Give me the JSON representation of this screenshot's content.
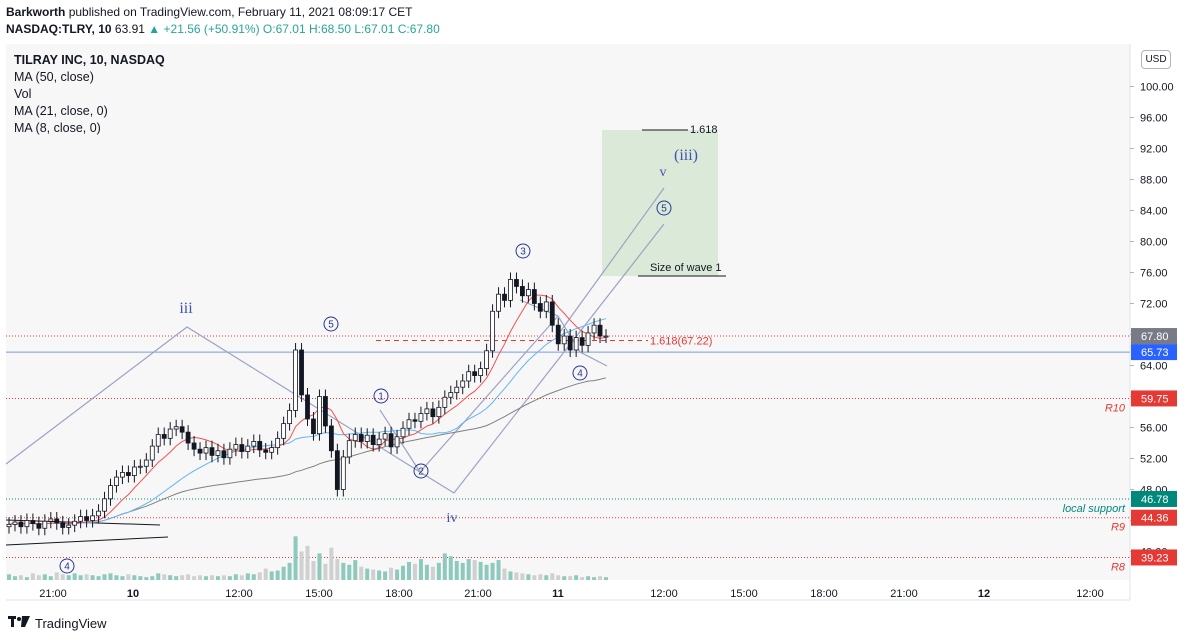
{
  "header": {
    "author": "Barkworth",
    "published": "published on TradingView.com, February 11, 2021 08:09:17 CET",
    "symbol": "NASDAQ:TLRY, 10",
    "last": "63.91",
    "change": "▲ +21.56 (+50.91%)",
    "o": "O:67.01",
    "h": "H:68.50",
    "l": "L:67.01",
    "c": "C:67.80"
  },
  "legend": {
    "title": "TILRAY INC, 10, NASDAQ",
    "lines": [
      "MA (50, close)",
      "Vol",
      "MA (21, close, 0)",
      "MA (8, close, 0)"
    ]
  },
  "currency": "USD",
  "footer": {
    "brand": "TradingView"
  },
  "colors": {
    "up": "#26a69a",
    "down": "#000000",
    "ma8": "#ef5350",
    "ma21": "#64b5f6",
    "ma50": "#808080",
    "wave": "#283593",
    "channel": "#9aa3c4",
    "target_box": "#d6e7d2",
    "level_red": "#e53935",
    "level_teal": "#00897b",
    "price_blue": "#2962ff"
  },
  "chart_data": {
    "type": "candlestick",
    "title": "TILRAY INC, 10, NASDAQ",
    "ylim": [
      36,
      104
    ],
    "y_ticks": [
      100,
      96,
      92,
      88,
      84,
      80,
      76,
      72,
      68,
      64,
      60,
      56,
      52,
      48,
      44,
      40
    ],
    "x_ticks": [
      "21:00",
      "10",
      "12:00",
      "15:00",
      "18:00",
      "21:00",
      "11",
      "12:00",
      "15:00",
      "18:00",
      "21:00",
      "12",
      "12:00"
    ],
    "series": [
      {
        "name": "TLRY",
        "values": [
          43.5,
          43.8,
          43.2,
          44.0,
          43.6,
          43.0,
          43.9,
          44.2,
          43.7,
          43.1,
          43.4,
          43.9,
          44.5,
          44.0,
          44.6,
          45.2,
          46.8,
          48.5,
          49.6,
          50.2,
          49.8,
          50.9,
          51.0,
          51.8,
          53.6,
          55.1,
          54.6,
          55.8,
          56.1,
          55.4,
          54.0,
          53.2,
          52.7,
          53.4,
          52.4,
          53.0,
          52.1,
          53.2,
          53.8,
          52.9,
          53.6,
          54.2,
          53.1,
          52.8,
          53.4,
          54.6,
          56.5,
          58.2,
          66.0,
          60.2,
          57.1,
          55.2,
          60.0,
          56.2,
          53.0,
          48.0,
          52.2,
          54.3,
          55.1,
          54.2,
          55.0,
          53.8,
          54.5,
          55.2,
          53.5,
          54.8,
          55.9,
          57.0,
          56.8,
          57.8,
          58.4,
          57.4,
          58.6,
          59.9,
          60.5,
          61.2,
          62.0,
          63.2,
          62.7,
          63.6,
          65.9,
          71.0,
          73.2,
          72.4,
          75.1,
          74.2,
          73.0,
          73.8,
          72.0,
          71.0,
          72.2,
          69.2,
          66.8,
          67.8,
          66.0,
          67.6,
          66.6,
          68.2,
          69.2,
          67.8,
          67.8
        ]
      },
      {
        "name": "Vol",
        "values": [
          6,
          4,
          5,
          3,
          7,
          5,
          6,
          4,
          8,
          6,
          5,
          7,
          5,
          6,
          5,
          4,
          6,
          7,
          5,
          4,
          6,
          5,
          4,
          3,
          4,
          7,
          6,
          5,
          4,
          5,
          6,
          4,
          5,
          4,
          5,
          4,
          5,
          4,
          6,
          5,
          7,
          6,
          8,
          12,
          9,
          10,
          14,
          18,
          46,
          30,
          36,
          20,
          28,
          17,
          34,
          22,
          18,
          16,
          21,
          14,
          12,
          11,
          10,
          9,
          13,
          11,
          15,
          19,
          17,
          22,
          16,
          14,
          18,
          28,
          25,
          20,
          18,
          22,
          21,
          19,
          16,
          18,
          21,
          12,
          9,
          8,
          7,
          6,
          5,
          6,
          5,
          7,
          5,
          4,
          4,
          5,
          3,
          4,
          3,
          4,
          3
        ]
      }
    ],
    "moving_averages": [
      "MA (50, close)",
      "MA (21, close, 0)",
      "MA (8, close, 0)"
    ],
    "price_labels": [
      {
        "text": "67.80",
        "value": 67.8,
        "color": "#787b86"
      },
      {
        "text": "65.73",
        "value": 65.73,
        "color": "#2962ff"
      },
      {
        "text": "59.75",
        "value": 59.75,
        "color": "#e53935"
      },
      {
        "text": "46.78",
        "value": 46.78,
        "color": "#00897b"
      },
      {
        "text": "44.36",
        "value": 44.36,
        "color": "#e53935"
      },
      {
        "text": "39.23",
        "value": 39.23,
        "color": "#e53935"
      }
    ],
    "levels": [
      {
        "name": "R10",
        "value": 59.75
      },
      {
        "name": "local support",
        "value": 46.78
      },
      {
        "name": "R9",
        "value": 44.36
      },
      {
        "name": "R8",
        "value": 39.23
      }
    ],
    "annotations": {
      "fib_top": "1.618",
      "fib_mid": "1.618(67.22)",
      "wave1_size": "Size of wave 1",
      "wave_labels": [
        "iii",
        "iv",
        "(iii)",
        "v",
        "1",
        "2",
        "3",
        "4",
        "5",
        "5",
        "4",
        "5"
      ]
    }
  }
}
